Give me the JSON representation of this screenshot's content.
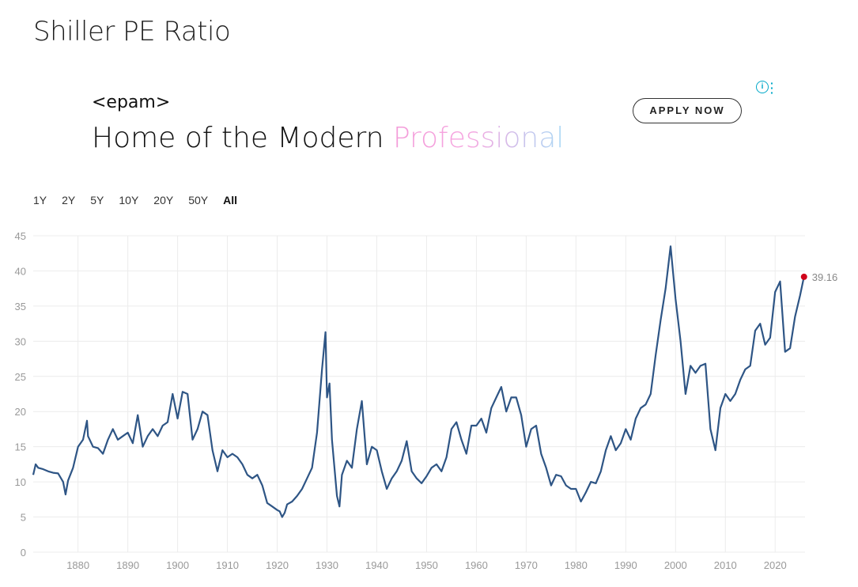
{
  "page": {
    "title": "Shiller PE Ratio"
  },
  "ad": {
    "logo": "<epam>",
    "headline_plain": "Home of the Modern ",
    "headline_highlight": "Professional",
    "cta": "APPLY NOW",
    "info_icon": "info-icon",
    "menu_icon": "kebab-menu-icon"
  },
  "ranges": [
    "1Y",
    "2Y",
    "5Y",
    "10Y",
    "20Y",
    "50Y",
    "All"
  ],
  "active_range": "All",
  "colors": {
    "line": "#2e5585",
    "marker": "#d0021b",
    "grid": "#ececec"
  },
  "chart_data": {
    "type": "line",
    "title": "Shiller PE Ratio",
    "xlabel": "",
    "ylabel": "",
    "xlim": [
      1871,
      2026
    ],
    "ylim": [
      0,
      45
    ],
    "y_ticks": [
      0,
      5,
      10,
      15,
      20,
      25,
      30,
      35,
      40,
      45
    ],
    "x_ticks": [
      1880,
      1890,
      1900,
      1910,
      1920,
      1930,
      1940,
      1950,
      1960,
      1970,
      1980,
      1990,
      2000,
      2010,
      2020
    ],
    "last_value_label": "39.16",
    "series": [
      {
        "name": "Shiller PE",
        "x": [
          1871,
          1871.5,
          1872,
          1873,
          1874,
          1875,
          1876,
          1877,
          1877.5,
          1878,
          1879,
          1880,
          1881,
          1881.8,
          1882,
          1883,
          1884,
          1885,
          1886,
          1887,
          1888,
          1889,
          1890,
          1891,
          1892,
          1893,
          1894,
          1895,
          1896,
          1897,
          1898,
          1899,
          1900,
          1901,
          1902,
          1903,
          1904,
          1905,
          1906,
          1907,
          1908,
          1909,
          1910,
          1911,
          1912,
          1913,
          1914,
          1915,
          1916,
          1917,
          1918,
          1919,
          1920,
          1920.5,
          1921,
          1921.5,
          1922,
          1923,
          1924,
          1925,
          1926,
          1927,
          1928,
          1929,
          1929.7,
          1930,
          1930.5,
          1931,
          1932,
          1932.5,
          1933,
          1934,
          1935,
          1936,
          1937,
          1938,
          1939,
          1940,
          1941,
          1942,
          1943,
          1944,
          1945,
          1946,
          1947,
          1948,
          1949,
          1950,
          1951,
          1952,
          1953,
          1954,
          1955,
          1956,
          1957,
          1958,
          1959,
          1960,
          1961,
          1962,
          1963,
          1964,
          1965,
          1966,
          1967,
          1968,
          1969,
          1970,
          1971,
          1972,
          1973,
          1974,
          1975,
          1976,
          1977,
          1978,
          1979,
          1980,
          1981,
          1982,
          1983,
          1984,
          1985,
          1986,
          1987,
          1988,
          1989,
          1990,
          1991,
          1992,
          1993,
          1994,
          1995,
          1996,
          1997,
          1998,
          1999,
          2000,
          2001,
          2002,
          2003,
          2004,
          2005,
          2006,
          2007,
          2008,
          2009,
          2010,
          2011,
          2012,
          2013,
          2014,
          2015,
          2016,
          2017,
          2018,
          2019,
          2020,
          2021,
          2022,
          2023,
          2024,
          2025,
          2025.8
        ],
        "values": [
          11.0,
          12.5,
          12.0,
          11.8,
          11.5,
          11.3,
          11.2,
          10.0,
          8.2,
          10.2,
          12.0,
          15.0,
          16.0,
          18.7,
          16.5,
          15.0,
          14.8,
          14.0,
          16.0,
          17.5,
          16.0,
          16.5,
          17.0,
          15.5,
          19.5,
          15.0,
          16.5,
          17.5,
          16.5,
          18.0,
          18.5,
          22.5,
          19.0,
          22.8,
          22.5,
          16.0,
          17.5,
          20.0,
          19.5,
          14.5,
          11.5,
          14.5,
          13.5,
          14.0,
          13.5,
          12.5,
          11.0,
          10.5,
          11.0,
          9.5,
          7.0,
          6.5,
          6.0,
          5.8,
          5.0,
          5.6,
          6.8,
          7.2,
          8.0,
          9.0,
          10.5,
          12.0,
          17.0,
          26.0,
          31.3,
          22.0,
          24.0,
          16.0,
          8.0,
          6.5,
          11.0,
          13.0,
          12.0,
          17.5,
          21.5,
          12.5,
          15.0,
          14.5,
          11.5,
          9.0,
          10.5,
          11.5,
          13.0,
          15.8,
          11.5,
          10.5,
          9.8,
          10.8,
          12.0,
          12.5,
          11.5,
          13.5,
          17.5,
          18.5,
          16.0,
          14.0,
          18.0,
          18.0,
          19.0,
          17.0,
          20.5,
          22.0,
          23.5,
          20.0,
          22.0,
          22.0,
          19.5,
          15.0,
          17.5,
          18.0,
          14.0,
          12.0,
          9.5,
          11.0,
          10.8,
          9.5,
          9.0,
          9.0,
          7.2,
          8.5,
          10.0,
          9.8,
          11.5,
          14.5,
          16.5,
          14.5,
          15.5,
          17.5,
          16.0,
          19.0,
          20.5,
          21.0,
          22.5,
          28.0,
          33.0,
          37.5,
          43.5,
          36.0,
          30.0,
          22.5,
          26.5,
          25.5,
          26.5,
          26.8,
          17.5,
          14.5,
          20.5,
          22.5,
          21.5,
          22.5,
          24.5,
          26.0,
          26.5,
          31.5,
          32.5,
          29.5,
          30.5,
          37.0,
          38.5,
          28.5,
          29.0,
          33.5,
          36.5,
          39.16
        ]
      }
    ]
  }
}
